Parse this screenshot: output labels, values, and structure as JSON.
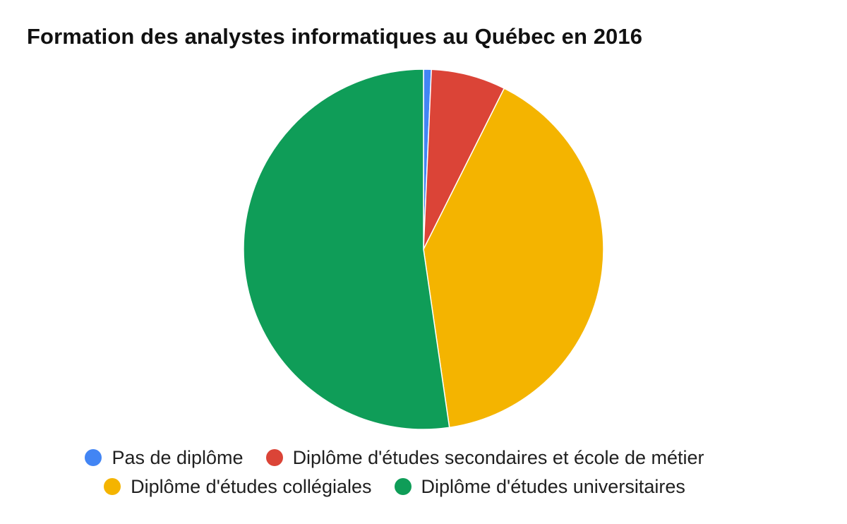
{
  "chart_data": {
    "type": "pie",
    "title": "Formation des analystes informatiques au Québec en 2016",
    "slices": [
      {
        "label": "Pas de diplôme",
        "value": 0.7,
        "color": "#4285f4"
      },
      {
        "label": "Diplôme d'études secondaires et école de métier",
        "value": 6.7,
        "color": "#db4437"
      },
      {
        "label": "Diplôme d'études collégiales",
        "value": 40.3,
        "color": "#f4b400"
      },
      {
        "label": "Diplôme d'études universitaires",
        "value": 52.3,
        "color": "#0f9d58"
      }
    ],
    "legend_position": "bottom"
  }
}
